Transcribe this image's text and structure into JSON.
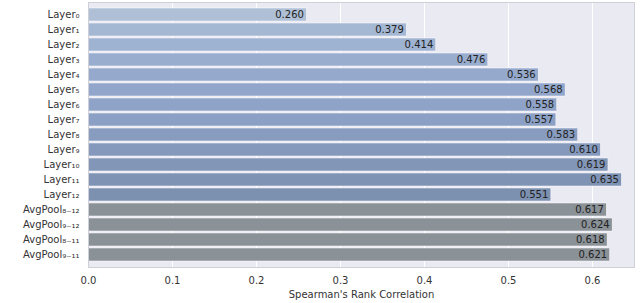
{
  "chart_data": {
    "type": "bar",
    "orientation": "horizontal",
    "categories": [
      "Layer₀",
      "Layer₁",
      "Layer₂",
      "Layer₃",
      "Layer₄",
      "Layer₅",
      "Layer₆",
      "Layer₇",
      "Layer₈",
      "Layer₉",
      "Layer₁₀",
      "Layer₁₁",
      "Layer₁₂",
      "AvgPool₈₋₁₂",
      "AvgPool₉₋₁₂",
      "AvgPool₈₋₁₁",
      "AvgPool₉₋₁₁"
    ],
    "values": [
      0.26,
      0.379,
      0.414,
      0.476,
      0.536,
      0.568,
      0.558,
      0.557,
      0.583,
      0.61,
      0.619,
      0.635,
      0.551,
      0.617,
      0.624,
      0.618,
      0.621
    ],
    "value_labels": [
      "0.260",
      "0.379",
      "0.414",
      "0.476",
      "0.536",
      "0.568",
      "0.558",
      "0.557",
      "0.583",
      "0.610",
      "0.619",
      "0.635",
      "0.551",
      "0.617",
      "0.624",
      "0.618",
      "0.621"
    ],
    "colors": [
      "#aebfd6",
      "#a4b7d3",
      "#9eb2d1",
      "#99adcf",
      "#94a9cc",
      "#91a6ca",
      "#8ea3c7",
      "#8ba0c4",
      "#889cc0",
      "#8599bc",
      "#8296b8",
      "#7f93b4",
      "#7c90b0",
      "#8a9197",
      "#8a9197",
      "#8a9197",
      "#8a9197"
    ],
    "xlabel": "Spearman's Rank Correlation",
    "xlim": [
      0,
      0.65
    ],
    "xticks": [
      {
        "value": 0,
        "label": "0.0"
      },
      0.1,
      0.2,
      0.3,
      0.4,
      0.5,
      0.6
    ],
    "grid": true,
    "data_labels": true
  }
}
